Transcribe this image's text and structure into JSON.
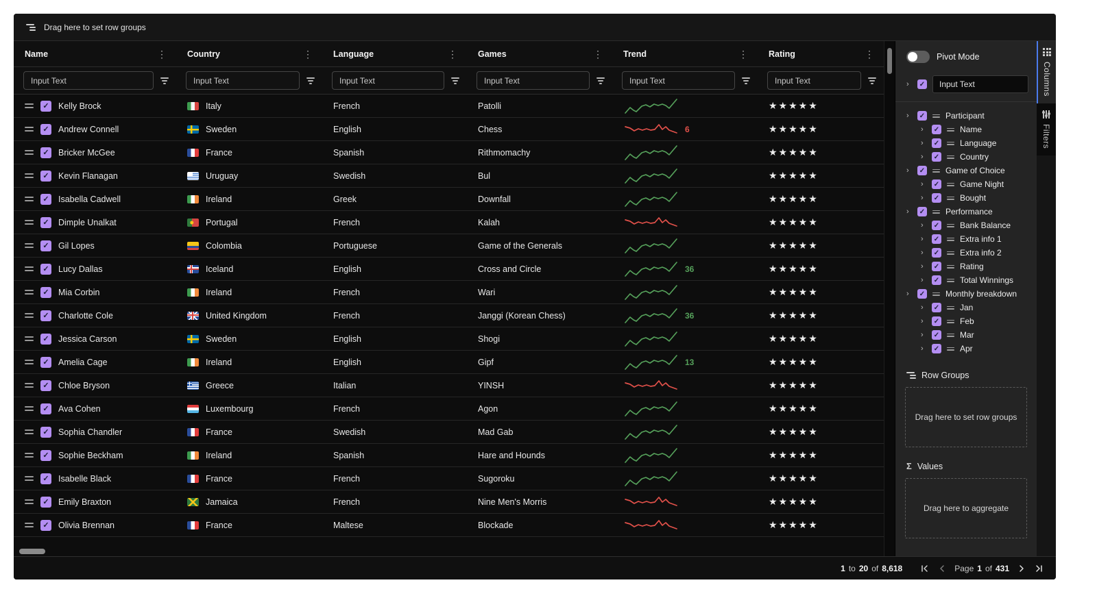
{
  "colors": {
    "trend_up": "#55a05a",
    "trend_down": "#e2514a",
    "checkbox_purple": "#b48ef2",
    "tab_accent": "#4b7bec"
  },
  "topbar": {
    "drop_hint": "Drag here to set row groups"
  },
  "grid": {
    "filter_placeholder": "Input Text",
    "columns": [
      {
        "label": "Name"
      },
      {
        "label": "Country"
      },
      {
        "label": "Language"
      },
      {
        "label": "Games"
      },
      {
        "label": "Trend"
      },
      {
        "label": "Rating"
      }
    ],
    "rows": [
      {
        "name": "Kelly Brock",
        "country": "Italy",
        "language": "French",
        "game": "Patolli",
        "trend": "up",
        "trend_label": "",
        "rating": 5,
        "checked": true
      },
      {
        "name": "Andrew Connell",
        "country": "Sweden",
        "language": "English",
        "game": "Chess",
        "trend": "down",
        "trend_label": "6",
        "rating": 5,
        "checked": true
      },
      {
        "name": "Bricker McGee",
        "country": "France",
        "language": "Spanish",
        "game": "Rithmomachy",
        "trend": "up",
        "trend_label": "",
        "rating": 5,
        "checked": true
      },
      {
        "name": "Kevin Flanagan",
        "country": "Uruguay",
        "language": "Swedish",
        "game": "Bul",
        "trend": "up",
        "trend_label": "",
        "rating": 5,
        "checked": true
      },
      {
        "name": "Isabella Cadwell",
        "country": "Ireland",
        "language": "Greek",
        "game": "Downfall",
        "trend": "up",
        "trend_label": "",
        "rating": 5,
        "checked": true
      },
      {
        "name": "Dimple Unalkat",
        "country": "Portugal",
        "language": "French",
        "game": "Kalah",
        "trend": "down",
        "trend_label": "",
        "rating": 5,
        "checked": true
      },
      {
        "name": "Gil Lopes",
        "country": "Colombia",
        "language": "Portuguese",
        "game": "Game of the Generals",
        "trend": "up",
        "trend_label": "",
        "rating": 5,
        "checked": true
      },
      {
        "name": "Lucy Dallas",
        "country": "Iceland",
        "language": "English",
        "game": "Cross and Circle",
        "trend": "up",
        "trend_label": "36",
        "rating": 5,
        "checked": true
      },
      {
        "name": "Mia Corbin",
        "country": "Ireland",
        "language": "French",
        "game": "Wari",
        "trend": "up",
        "trend_label": "",
        "rating": 5,
        "checked": true
      },
      {
        "name": "Charlotte Cole",
        "country": "United Kingdom",
        "language": "French",
        "game": "Janggi (Korean Chess)",
        "trend": "up",
        "trend_label": "36",
        "rating": 5,
        "checked": true
      },
      {
        "name": "Jessica Carson",
        "country": "Sweden",
        "language": "English",
        "game": "Shogi",
        "trend": "up",
        "trend_label": "",
        "rating": 5,
        "checked": true
      },
      {
        "name": "Amelia Cage",
        "country": "Ireland",
        "language": "English",
        "game": "Gipf",
        "trend": "up",
        "trend_label": "13",
        "rating": 5,
        "checked": true
      },
      {
        "name": "Chloe Bryson",
        "country": "Greece",
        "language": "Italian",
        "game": "YINSH",
        "trend": "down",
        "trend_label": "",
        "rating": 5,
        "checked": true
      },
      {
        "name": "Ava Cohen",
        "country": "Luxembourg",
        "language": "French",
        "game": "Agon",
        "trend": "up",
        "trend_label": "",
        "rating": 5,
        "checked": true
      },
      {
        "name": "Sophia Chandler",
        "country": "France",
        "language": "Swedish",
        "game": "Mad Gab",
        "trend": "up",
        "trend_label": "",
        "rating": 5,
        "checked": true
      },
      {
        "name": "Sophie Beckham",
        "country": "Ireland",
        "language": "Spanish",
        "game": "Hare and Hounds",
        "trend": "up",
        "trend_label": "",
        "rating": 5,
        "checked": true
      },
      {
        "name": "Isabelle Black",
        "country": "France",
        "language": "French",
        "game": "Sugoroku",
        "trend": "up",
        "trend_label": "",
        "rating": 5,
        "checked": true
      },
      {
        "name": "Emily Braxton",
        "country": "Jamaica",
        "language": "French",
        "game": "Nine Men's Morris",
        "trend": "down",
        "trend_label": "",
        "rating": 5,
        "checked": true
      },
      {
        "name": "Olivia Brennan",
        "country": "France",
        "language": "Maltese",
        "game": "Blockade",
        "trend": "down",
        "trend_label": "",
        "rating": 5,
        "checked": true
      }
    ]
  },
  "sidebar": {
    "pivot_label": "Pivot Mode",
    "pivot_on": false,
    "search_placeholder": "Input Text",
    "tree": [
      {
        "label": "Participant",
        "children": [
          "Name",
          "Language",
          "Country"
        ]
      },
      {
        "label": "Game of Choice",
        "children": [
          "Game Night",
          "Bought"
        ]
      },
      {
        "label": "Performance",
        "children": [
          "Bank Balance",
          "Extra info 1",
          "Extra info 2",
          "Rating",
          "Total Winnings"
        ]
      },
      {
        "label": "Monthly breakdown",
        "children": [
          "Jan",
          "Feb",
          "Mar",
          "Apr"
        ]
      }
    ],
    "row_groups": {
      "title": "Row Groups",
      "drop_hint": "Drag here to set row groups"
    },
    "values": {
      "title": "Values",
      "drop_hint": "Drag here to aggregate"
    },
    "tabs": [
      {
        "label": "Columns",
        "active": true
      },
      {
        "label": "Filters",
        "active": false
      }
    ]
  },
  "status_bar": {
    "summary": {
      "start": "1",
      "to_word": "to",
      "end": "20",
      "of_word": "of",
      "total": "8,618"
    },
    "pagination": {
      "page_word": "Page",
      "current": "1",
      "of_word": "of",
      "total": "431"
    }
  }
}
